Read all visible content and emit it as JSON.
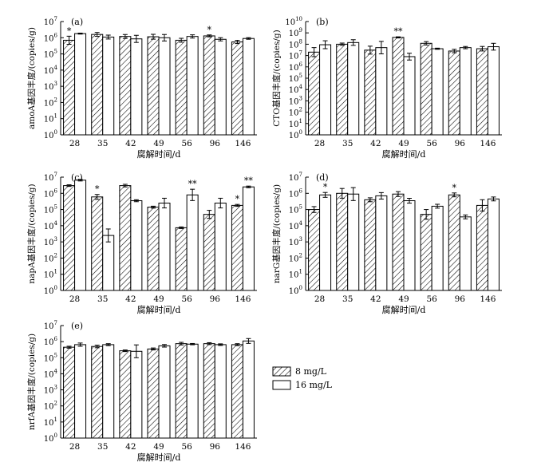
{
  "figure": {
    "xlabel": "腐解时间/d",
    "legend": {
      "items": [
        {
          "label": "8 mg/L",
          "pattern": "hatched"
        },
        {
          "label": "16 mg/L",
          "pattern": "open"
        }
      ]
    },
    "colors": {
      "bar_stroke": "#000000",
      "bar_fill_open": "#ffffff"
    }
  },
  "chart_data": [
    {
      "type": "bar",
      "panel": "(a)",
      "ylabel": "amoA基因丰度/(copies/g)",
      "yscale": "log",
      "ylim_exp": [
        0,
        7
      ],
      "categories": [
        "28",
        "35",
        "42",
        "49",
        "56",
        "96",
        "146"
      ],
      "series": [
        {
          "name": "8 mg/L",
          "values": [
            700000,
            1600000,
            1200000,
            1150000,
            700000,
            1300000,
            550000
          ],
          "err": [
            0.25,
            0.12,
            0.12,
            0.15,
            0.12,
            0.06,
            0.1
          ]
        },
        {
          "name": "16 mg/L",
          "values": [
            1800000,
            1100000,
            850000,
            1000000,
            1200000,
            800000,
            900000
          ],
          "err": [
            0.03,
            0.12,
            0.22,
            0.2,
            0.1,
            0.1,
            0.05
          ]
        }
      ],
      "significance": [
        {
          "category": "28",
          "series": 0,
          "mark": "*"
        },
        {
          "category": "96",
          "series": 0,
          "mark": "*"
        }
      ]
    },
    {
      "type": "bar",
      "panel": "(b)",
      "ylabel": "CTO基因丰度/(copies/g)",
      "yscale": "log",
      "ylim_exp": [
        0,
        10
      ],
      "categories": [
        "28",
        "35",
        "42",
        "49",
        "56",
        "96",
        "146"
      ],
      "series": [
        {
          "name": "8 mg/L",
          "values": [
            20000000,
            100000000,
            30000000,
            400000000,
            120000000,
            25000000,
            40000000
          ],
          "err": [
            0.4,
            0.1,
            0.35,
            0.05,
            0.15,
            0.15,
            0.2
          ]
        },
        {
          "name": "16 mg/L",
          "values": [
            90000000,
            140000000,
            50000000,
            8000000,
            40000000,
            50000000,
            60000000
          ],
          "err": [
            0.35,
            0.25,
            0.55,
            0.3,
            0.05,
            0.1,
            0.3
          ]
        }
      ],
      "significance": [
        {
          "category": "49",
          "series": 0,
          "mark": "**"
        }
      ]
    },
    {
      "type": "bar",
      "panel": "(c)",
      "ylabel": "napA基因丰度/(copies/g)",
      "yscale": "log",
      "ylim_exp": [
        0,
        7
      ],
      "categories": [
        "28",
        "35",
        "42",
        "49",
        "56",
        "96",
        "146"
      ],
      "series": [
        {
          "name": "8 mg/L",
          "values": [
            3000000,
            600000,
            3000000,
            140000,
            7500,
            50000,
            180000
          ],
          "err": [
            0.05,
            0.15,
            0.08,
            0.06,
            0.05,
            0.25,
            0.06
          ]
        },
        {
          "name": "16 mg/L",
          "values": [
            6500000,
            2500,
            350000,
            250000,
            800000,
            250000,
            2500000
          ],
          "err": [
            0.05,
            0.4,
            0.06,
            0.3,
            0.35,
            0.3,
            0.05
          ]
        }
      ],
      "significance": [
        {
          "category": "35",
          "series": 0,
          "mark": "*"
        },
        {
          "category": "56",
          "series": 1,
          "mark": "**"
        },
        {
          "category": "146",
          "series": 0,
          "mark": "*"
        },
        {
          "category": "146",
          "series": 1,
          "mark": "**"
        }
      ]
    },
    {
      "type": "bar",
      "panel": "(d)",
      "ylabel": "narG基因丰度/(copies/g)",
      "yscale": "log",
      "ylim_exp": [
        0,
        7
      ],
      "categories": [
        "28",
        "35",
        "42",
        "49",
        "56",
        "96",
        "146"
      ],
      "series": [
        {
          "name": "8 mg/L",
          "values": [
            100000,
            1000000,
            400000,
            900000,
            50000,
            800000,
            180000
          ],
          "err": [
            0.18,
            0.3,
            0.12,
            0.15,
            0.3,
            0.12,
            0.35
          ]
        },
        {
          "name": "16 mg/L",
          "values": [
            800000,
            900000,
            700000,
            350000,
            160000,
            35000,
            450000
          ],
          "err": [
            0.15,
            0.4,
            0.2,
            0.15,
            0.12,
            0.12,
            0.12
          ]
        }
      ],
      "significance": [
        {
          "category": "28",
          "series": 1,
          "mark": "*"
        },
        {
          "category": "96",
          "series": 0,
          "mark": "*"
        }
      ]
    },
    {
      "type": "bar",
      "panel": "(e)",
      "ylabel": "nrfA基因丰度/(copies/g)",
      "yscale": "log",
      "ylim_exp": [
        0,
        7
      ],
      "categories": [
        "28",
        "35",
        "42",
        "49",
        "56",
        "96",
        "146"
      ],
      "series": [
        {
          "name": "8 mg/L",
          "values": [
            450000,
            500000,
            270000,
            350000,
            750000,
            750000,
            650000
          ],
          "err": [
            0.06,
            0.08,
            0.05,
            0.06,
            0.08,
            0.06,
            0.06
          ]
        },
        {
          "name": "16 mg/L",
          "values": [
            650000,
            650000,
            250000,
            550000,
            700000,
            650000,
            1100000
          ],
          "err": [
            0.1,
            0.06,
            0.4,
            0.08,
            0.04,
            0.05,
            0.15
          ]
        }
      ],
      "significance": []
    }
  ]
}
